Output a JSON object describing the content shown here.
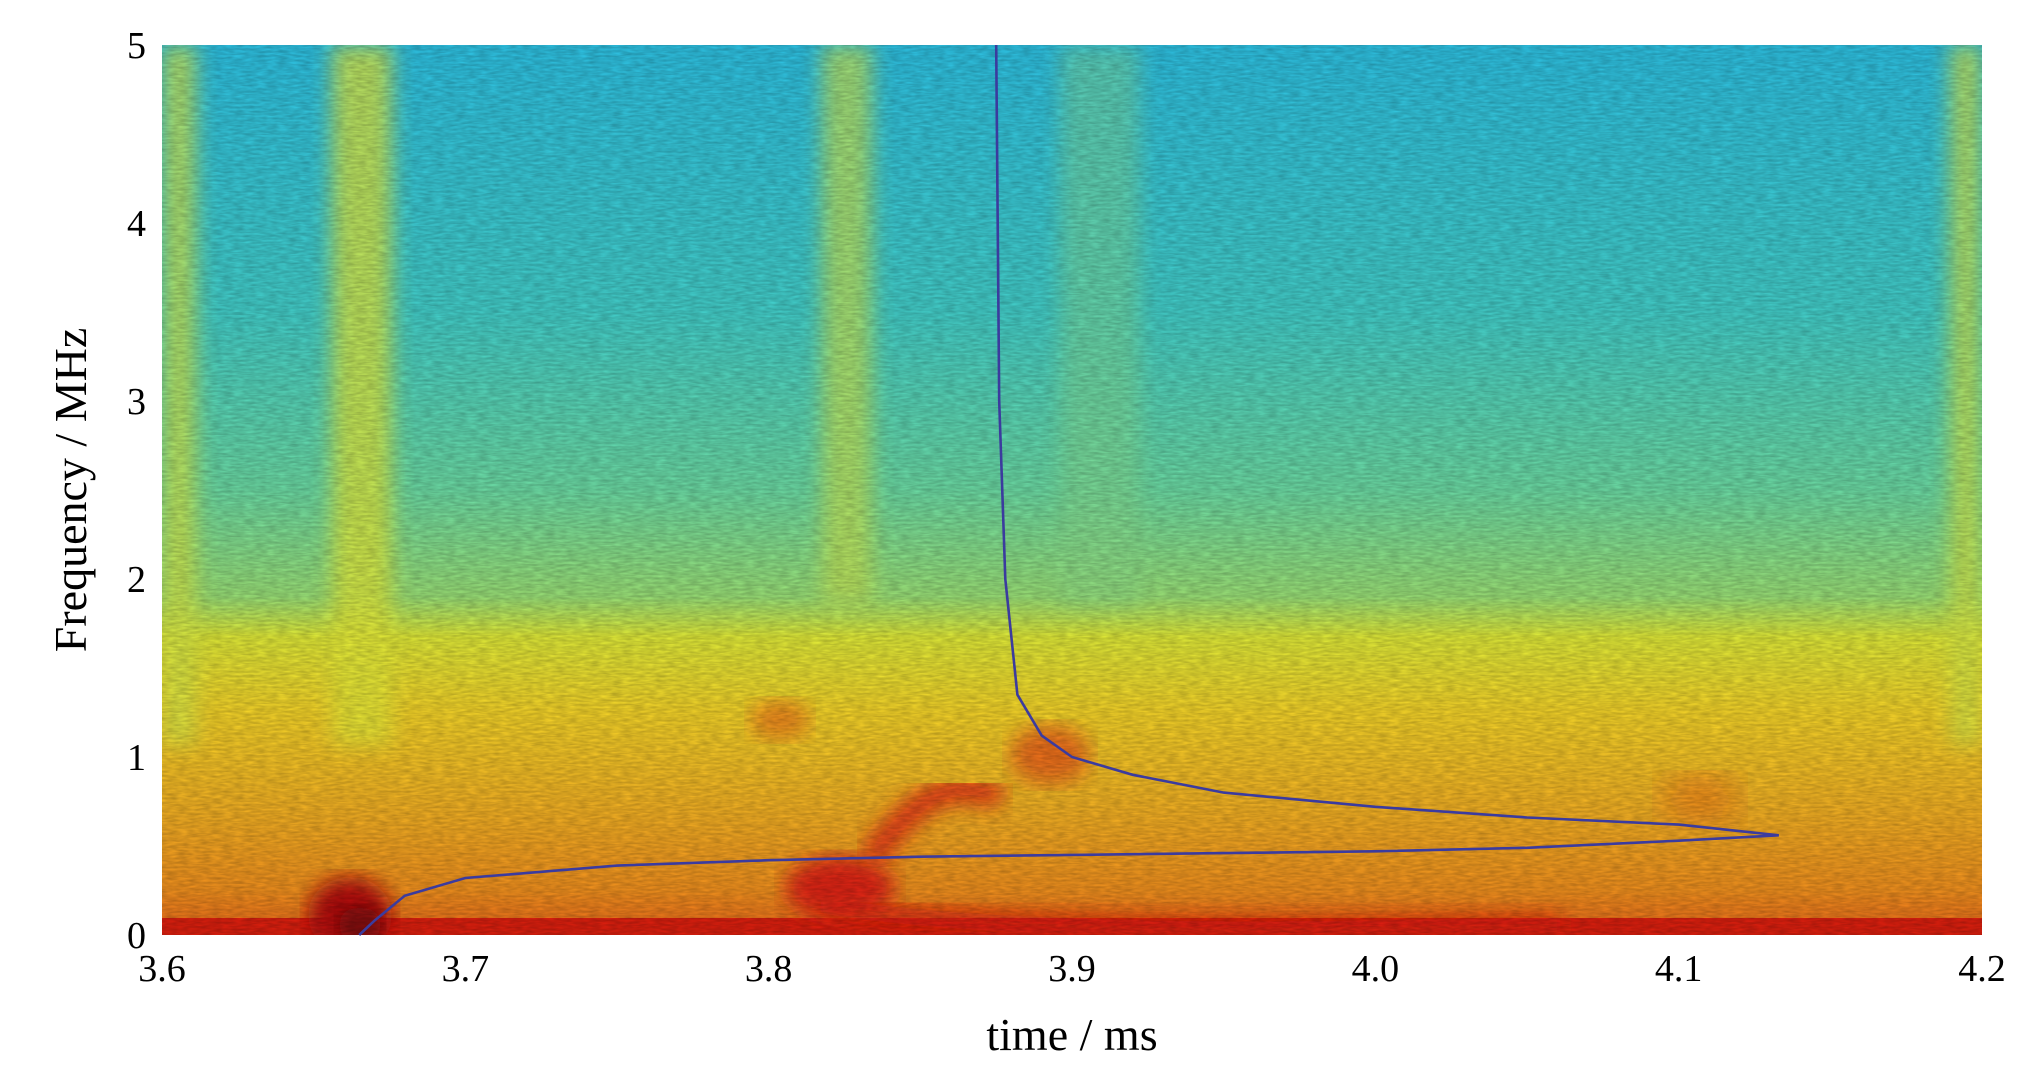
{
  "chart_data": {
    "type": "heatmap",
    "title": "",
    "xlabel": "time / ms",
    "ylabel": "Frequency / MHz",
    "xlim": [
      3.6,
      4.2
    ],
    "ylim": [
      0,
      5
    ],
    "x_ticks": [
      "3.6",
      "3.7",
      "3.8",
      "3.9",
      "4.0",
      "4.1",
      "4.2"
    ],
    "y_ticks": [
      "0",
      "1",
      "2",
      "3",
      "4",
      "5"
    ],
    "colormap": "jet",
    "grid": false,
    "legend": "none",
    "curve": {
      "color": "#3b3b9e",
      "x": [
        3.665,
        3.67,
        3.68,
        3.7,
        3.75,
        3.8,
        3.85,
        3.9,
        3.95,
        4.0,
        4.05,
        4.1,
        4.133,
        4.1,
        4.05,
        4.0,
        3.95,
        3.92,
        3.9,
        3.89,
        3.882,
        3.878,
        3.876,
        3.875
      ],
      "y": [
        0.0,
        0.08,
        0.22,
        0.32,
        0.39,
        0.42,
        0.44,
        0.45,
        0.46,
        0.47,
        0.49,
        0.53,
        0.56,
        0.62,
        0.66,
        0.72,
        0.8,
        0.9,
        1.0,
        1.12,
        1.35,
        2.0,
        3.0,
        5.0
      ]
    }
  }
}
